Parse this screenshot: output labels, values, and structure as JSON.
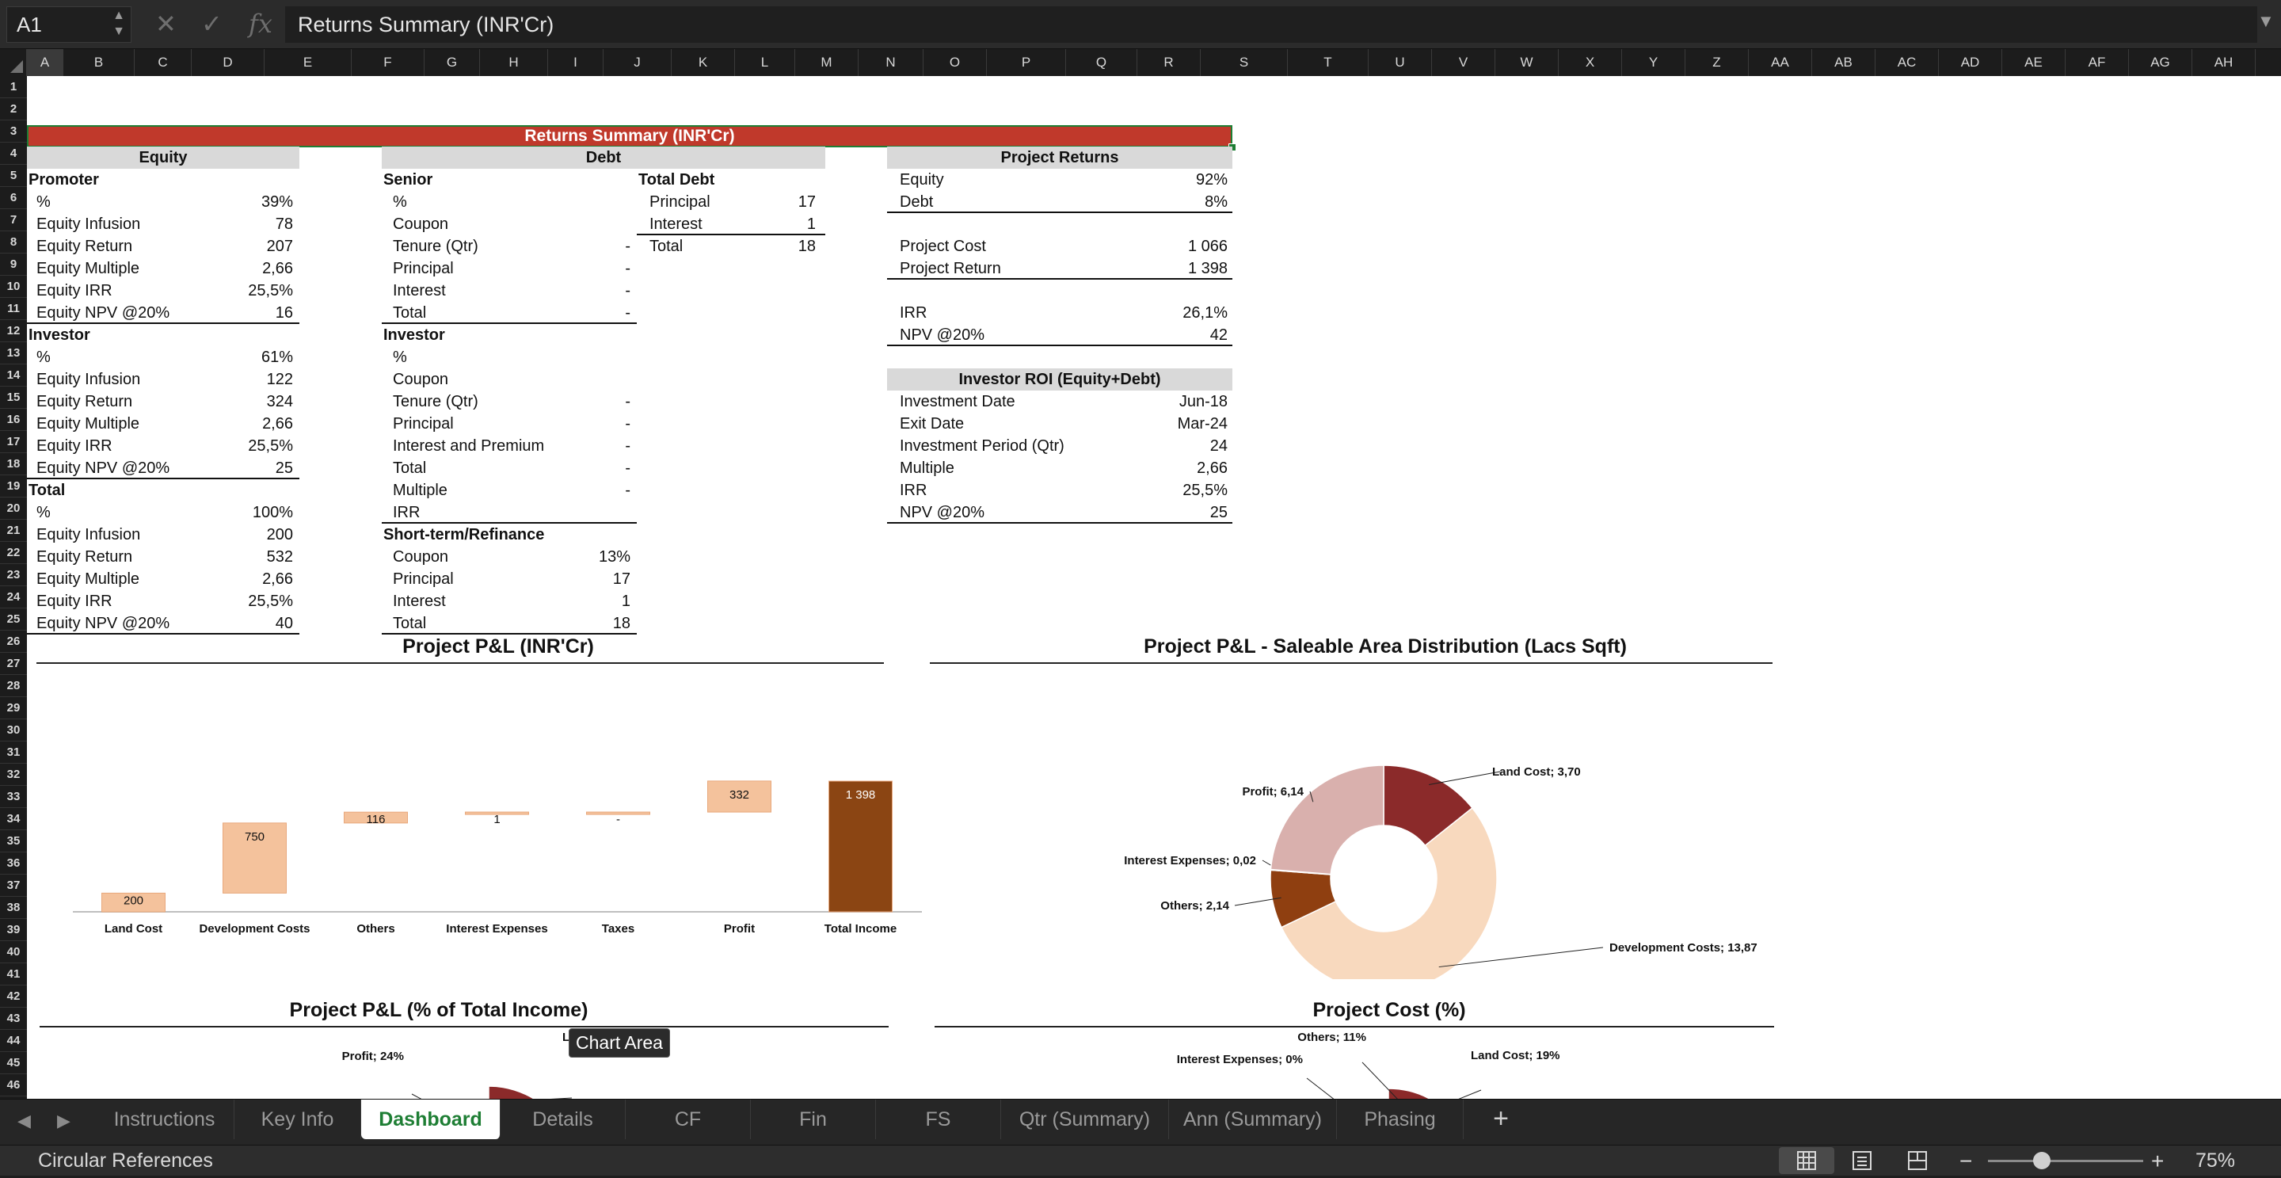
{
  "formula_bar": {
    "cell_ref": "A1",
    "fx_label": "fx",
    "formula": "Returns Summary (INR'Cr)"
  },
  "columns": [
    "A",
    "B",
    "C",
    "D",
    "E",
    "F",
    "G",
    "H",
    "I",
    "J",
    "K",
    "L",
    "M",
    "N",
    "O",
    "P",
    "Q",
    "R",
    "S",
    "T",
    "U",
    "V",
    "W",
    "X",
    "Y",
    "Z",
    "AA",
    "AB",
    "AC",
    "AD",
    "AE",
    "AF",
    "AG",
    "AH"
  ],
  "title": "Returns Summary (INR'Cr)",
  "equity": {
    "header": "Equity",
    "rows": [
      {
        "label": "Promoter",
        "value": "",
        "bold": true
      },
      {
        "label": "%",
        "value": "39%"
      },
      {
        "label": "Equity Infusion",
        "value": "78"
      },
      {
        "label": "Equity Return",
        "value": "207"
      },
      {
        "label": "Equity Multiple",
        "value": "2,66"
      },
      {
        "label": "Equity IRR",
        "value": "25,5%"
      },
      {
        "label": "Equity NPV @20%",
        "value": "16",
        "ul": true
      },
      {
        "label": "Investor",
        "value": "",
        "bold": true
      },
      {
        "label": "%",
        "value": "61%"
      },
      {
        "label": "Equity Infusion",
        "value": "122"
      },
      {
        "label": "Equity Return",
        "value": "324"
      },
      {
        "label": "Equity Multiple",
        "value": "2,66"
      },
      {
        "label": "Equity IRR",
        "value": "25,5%"
      },
      {
        "label": "Equity NPV @20%",
        "value": "25",
        "ul": true
      },
      {
        "label": "Total",
        "value": "",
        "bold": true
      },
      {
        "label": "%",
        "value": "100%"
      },
      {
        "label": "Equity Infusion",
        "value": "200"
      },
      {
        "label": "Equity Return",
        "value": "532"
      },
      {
        "label": "Equity Multiple",
        "value": "2,66"
      },
      {
        "label": "Equity IRR",
        "value": "25,5%"
      },
      {
        "label": "Equity NPV @20%",
        "value": "40",
        "ul": true
      }
    ]
  },
  "debt": {
    "header": "Debt",
    "rows": [
      {
        "label": "Senior",
        "value": "",
        "bold": true
      },
      {
        "label": "%",
        "value": ""
      },
      {
        "label": "Coupon",
        "value": ""
      },
      {
        "label": "Tenure (Qtr)",
        "value": "-"
      },
      {
        "label": "Principal",
        "value": "-"
      },
      {
        "label": "Interest",
        "value": "-"
      },
      {
        "label": "Total",
        "value": "-",
        "ul": true
      },
      {
        "label": "Investor",
        "value": "",
        "bold": true
      },
      {
        "label": "%",
        "value": ""
      },
      {
        "label": "Coupon",
        "value": ""
      },
      {
        "label": "Tenure (Qtr)",
        "value": "-"
      },
      {
        "label": "Principal",
        "value": "-"
      },
      {
        "label": "Interest and Premium",
        "value": "-"
      },
      {
        "label": "Total",
        "value": "-"
      },
      {
        "label": "Multiple",
        "value": "-"
      },
      {
        "label": "IRR",
        "value": "",
        "ul": true
      },
      {
        "label": "Short-term/Refinance",
        "value": "",
        "bold": true
      },
      {
        "label": "Coupon",
        "value": "13%"
      },
      {
        "label": "Principal",
        "value": "17"
      },
      {
        "label": "Interest",
        "value": "1"
      },
      {
        "label": "Total",
        "value": "18",
        "ul": true
      }
    ]
  },
  "total_debt": {
    "rows": [
      {
        "label": "Total Debt",
        "value": "",
        "bold": true
      },
      {
        "label": "Principal",
        "value": "17"
      },
      {
        "label": "Interest",
        "value": "1",
        "ul": true
      },
      {
        "label": "Total",
        "value": "18"
      }
    ]
  },
  "project_returns": {
    "header": "Project Returns",
    "rows": [
      {
        "label": "Equity",
        "value": "92%"
      },
      {
        "label": "Debt",
        "value": "8%",
        "ul": true
      },
      {
        "label": "",
        "value": ""
      },
      {
        "label": "Project Cost",
        "value": "1 066"
      },
      {
        "label": "Project Return",
        "value": "1 398",
        "ul": true
      },
      {
        "label": "",
        "value": ""
      },
      {
        "label": "IRR",
        "value": "26,1%"
      },
      {
        "label": "NPV @20%",
        "value": "42",
        "ul": true
      }
    ]
  },
  "investor_roi": {
    "header": "Investor ROI (Equity+Debt)",
    "rows": [
      {
        "label": "Investment Date",
        "value": "Jun-18"
      },
      {
        "label": "Exit Date",
        "value": "Mar-24"
      },
      {
        "label": "Investment Period (Qtr)",
        "value": "24"
      },
      {
        "label": "Multiple",
        "value": "2,66"
      },
      {
        "label": "IRR",
        "value": "25,5%"
      },
      {
        "label": "NPV @20%",
        "value": "25",
        "ul": true
      }
    ]
  },
  "chart_data": [
    {
      "type": "bar",
      "subtype": "waterfall",
      "title": "Project P&L (INR'Cr)",
      "categories": [
        "Land Cost",
        "Development Costs",
        "Others",
        "Interest Expenses",
        "Taxes",
        "Profit",
        "Total Income"
      ],
      "values": [
        200,
        750,
        116,
        1,
        0,
        332,
        1398
      ],
      "labels": [
        "200",
        "750",
        "116",
        "1",
        "-",
        "332",
        "1 398"
      ],
      "ylim": [
        0,
        1398
      ],
      "colors": {
        "increment": "#f4c29c",
        "total": "#8b4513"
      }
    },
    {
      "type": "pie",
      "subtype": "doughnut",
      "title": "Project P&L - Saleable Area Distribution (Lacs Sqft)",
      "categories": [
        "Land Cost",
        "Development Costs",
        "Others",
        "Interest Expenses",
        "Profit"
      ],
      "values": [
        3.7,
        13.87,
        2.14,
        0.02,
        6.14
      ],
      "labels": [
        "Land Cost;  3,70",
        "Development Costs;  13,87",
        "Others;  2,14",
        "Interest Expenses;  0,02",
        "Profit;  6,14"
      ],
      "colors": [
        "#8b2a2a",
        "#f8d9be",
        "#8f3f10",
        "#b85c1e",
        "#d9b0ad"
      ]
    },
    {
      "type": "pie",
      "subtype": "doughnut",
      "title": "Project P&L (% of Total Income)",
      "categories": [
        "Land Cost",
        "Profit"
      ],
      "values": [
        14,
        24
      ],
      "labels": [
        "Land Cost; 14%",
        "Profit; 24%"
      ],
      "colors": [
        "#8b2a2a",
        "#d9b0ad"
      ]
    },
    {
      "type": "pie",
      "subtype": "doughnut",
      "title": "Project Cost (%)",
      "categories": [
        "Land Cost",
        "Others",
        "Interest Expenses"
      ],
      "values": [
        19,
        11,
        0
      ],
      "labels": [
        "Land Cost; 19%",
        "Others; 11%",
        "Interest Expenses; 0%"
      ],
      "colors": [
        "#8b2a2a",
        "#8f3f10",
        "#b85c1e"
      ]
    }
  ],
  "tooltip": "Chart Area",
  "tabs": [
    {
      "label": "Instructions",
      "active": false
    },
    {
      "label": "Key Info",
      "active": false
    },
    {
      "label": "Dashboard",
      "active": true
    },
    {
      "label": "Details",
      "active": false
    },
    {
      "label": "CF",
      "active": false
    },
    {
      "label": "Fin",
      "active": false
    },
    {
      "label": "FS",
      "active": false
    },
    {
      "label": "Qtr (Summary)",
      "active": false
    },
    {
      "label": "Ann (Summary)",
      "active": false
    },
    {
      "label": "Phasing",
      "active": false
    }
  ],
  "status": {
    "text": "Circular References",
    "zoom": "75%",
    "zoom_level": 0.75
  }
}
